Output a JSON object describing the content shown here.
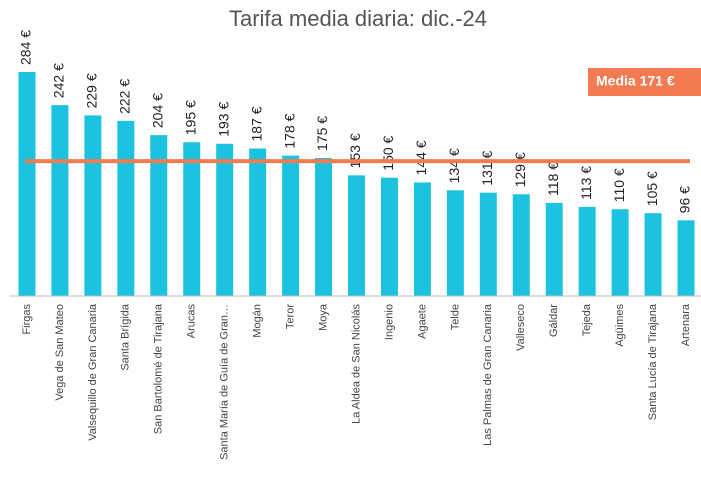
{
  "chart_data": {
    "type": "bar",
    "title": "Tarifa media diaria: dic.-24",
    "categories": [
      "Firgas",
      "Vega de San Mateo",
      "Valsequillo de Gran Canaria",
      "Santa Brígida",
      "San Bartolomé de Tirajana",
      "Arucas",
      "Santa María de Guía de Gran…",
      "Mogán",
      "Teror",
      "Moya",
      "La Aldea de San Nicolás",
      "Ingenio",
      "Agaete",
      "Telde",
      "Las Palmas de Gran Canaria",
      "Valleseco",
      "Gáldar",
      "Tejeda",
      "Agüimes",
      "Santa Lucía de Tirajana",
      "Artenara"
    ],
    "values": [
      284,
      242,
      229,
      222,
      204,
      195,
      193,
      187,
      178,
      175,
      153,
      150,
      144,
      134,
      131,
      129,
      118,
      113,
      110,
      105,
      96
    ],
    "value_labels": [
      "284 €",
      "242 €",
      "229 €",
      "222 €",
      "204 €",
      "195 €",
      "193 €",
      "187 €",
      "178 €",
      "175 €",
      "153 €",
      "150 €",
      "144 €",
      "134 €",
      "131 €",
      "129 €",
      "118 €",
      "113 €",
      "110 €",
      "105 €",
      "96 €"
    ],
    "color": "#1cc3e0",
    "ylim": [
      0,
      300
    ],
    "reference_line": {
      "value": 171,
      "label": "Media 171 €",
      "color": "#f47a50"
    }
  }
}
